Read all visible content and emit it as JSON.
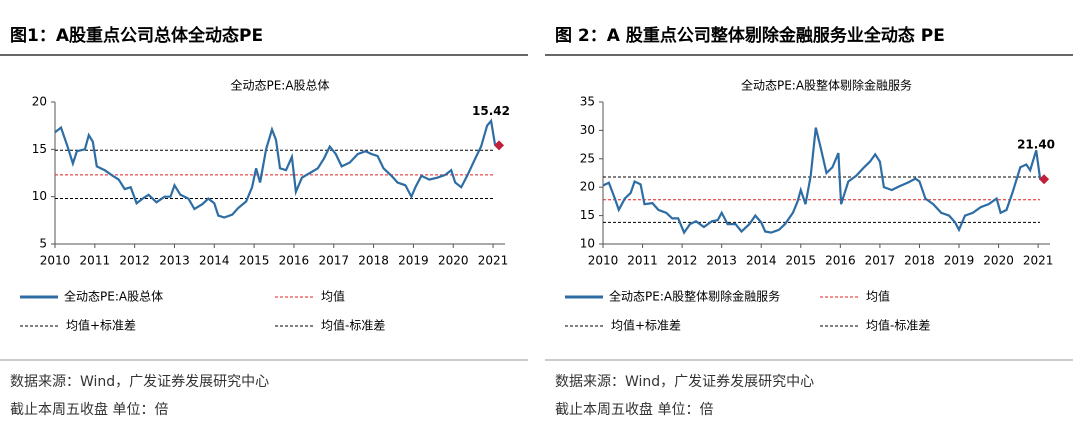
{
  "chart_data": [
    {
      "type": "line",
      "heading": "图1：A股重点公司总体全动态PE",
      "title": "全动态PE:A股总体",
      "source": "数据来源：Wind，广发证券发展研究中心",
      "note": "截止本周五收盘 单位：倍",
      "x": [
        2010.0,
        2010.15,
        2010.3,
        2010.45,
        2010.55,
        2010.75,
        2010.85,
        2010.95,
        2011.05,
        2011.25,
        2011.45,
        2011.6,
        2011.75,
        2011.9,
        2012.05,
        2012.2,
        2012.35,
        2012.55,
        2012.75,
        2012.9,
        2013.0,
        2013.15,
        2013.35,
        2013.5,
        2013.7,
        2013.85,
        2014.0,
        2014.1,
        2014.25,
        2014.45,
        2014.6,
        2014.8,
        2014.95,
        2015.05,
        2015.15,
        2015.3,
        2015.45,
        2015.55,
        2015.65,
        2015.8,
        2015.95,
        2016.05,
        2016.2,
        2016.4,
        2016.6,
        2016.75,
        2016.9,
        2017.05,
        2017.2,
        2017.4,
        2017.6,
        2017.8,
        2017.95,
        2018.1,
        2018.25,
        2018.45,
        2018.6,
        2018.8,
        2018.95,
        2019.05,
        2019.2,
        2019.4,
        2019.6,
        2019.8,
        2019.95,
        2020.05,
        2020.2,
        2020.35,
        2020.55,
        2020.7,
        2020.85,
        2020.95,
        2021.05,
        2021.15
      ],
      "series": [
        {
          "name": "全动态PE:A股总体",
          "color": "#2e6da4",
          "values": [
            16.8,
            17.3,
            15.5,
            13.5,
            14.8,
            15.0,
            16.5,
            15.8,
            13.2,
            12.8,
            12.2,
            11.8,
            10.8,
            11.0,
            9.3,
            9.8,
            10.2,
            9.4,
            10.0,
            10.0,
            11.2,
            10.2,
            9.8,
            8.7,
            9.2,
            9.8,
            9.3,
            8.0,
            7.8,
            8.1,
            8.8,
            9.5,
            11.0,
            13.0,
            11.5,
            15.0,
            17.1,
            16.0,
            13.0,
            12.8,
            14.2,
            10.5,
            12.0,
            12.5,
            13.0,
            14.0,
            15.3,
            14.5,
            13.2,
            13.6,
            14.5,
            14.8,
            14.5,
            14.3,
            13.0,
            12.2,
            11.5,
            11.2,
            10.0,
            11.0,
            12.2,
            11.8,
            12.0,
            12.3,
            12.8,
            11.5,
            11.0,
            12.2,
            14.0,
            15.3,
            17.5,
            18.0,
            15.5,
            15.42
          ]
        }
      ],
      "reference_lines": [
        {
          "name": "均值",
          "value": 12.3,
          "color": "#e02020"
        },
        {
          "name": "均值+标准差",
          "value": 14.9,
          "color": "#000000"
        },
        {
          "name": "均值-标准差",
          "value": 9.8,
          "color": "#000000"
        }
      ],
      "xlim": [
        2010,
        2021.3
      ],
      "xticks": [
        2010,
        2011,
        2012,
        2013,
        2014,
        2015,
        2016,
        2017,
        2018,
        2019,
        2020,
        2021
      ],
      "ylim": [
        5,
        20
      ],
      "yticks": [
        5,
        10,
        15,
        20
      ],
      "marker_color": "#c0203a"
    },
    {
      "type": "line",
      "heading": "图 2：A 股重点公司整体剔除金融服务业全动态 PE",
      "title": "全动态PE:A股整体剔除金融服务",
      "source": "数据来源：Wind，广发证券发展研究中心",
      "note": "截止本周五收盘 单位：倍",
      "x": [
        2010.0,
        2010.15,
        2010.3,
        2010.4,
        2010.55,
        2010.7,
        2010.8,
        2010.95,
        2011.05,
        2011.25,
        2011.4,
        2011.6,
        2011.75,
        2011.9,
        2012.05,
        2012.2,
        2012.35,
        2012.55,
        2012.75,
        2012.9,
        2013.0,
        2013.15,
        2013.35,
        2013.5,
        2013.7,
        2013.85,
        2014.0,
        2014.1,
        2014.25,
        2014.45,
        2014.6,
        2014.8,
        2014.92,
        2015.0,
        2015.12,
        2015.25,
        2015.38,
        2015.5,
        2015.65,
        2015.8,
        2015.95,
        2016.02,
        2016.2,
        2016.4,
        2016.6,
        2016.75,
        2016.88,
        2017.0,
        2017.1,
        2017.3,
        2017.5,
        2017.7,
        2017.9,
        2018.0,
        2018.15,
        2018.35,
        2018.55,
        2018.75,
        2018.9,
        2019.0,
        2019.15,
        2019.35,
        2019.55,
        2019.75,
        2019.95,
        2020.05,
        2020.2,
        2020.35,
        2020.55,
        2020.7,
        2020.8,
        2020.95,
        2021.05,
        2021.15
      ],
      "series": [
        {
          "name": "全动态PE:A股整体剔除金融服务",
          "color": "#2e6da4",
          "values": [
            20.3,
            20.8,
            18.0,
            16.0,
            18.0,
            19.0,
            21.0,
            20.5,
            17.0,
            17.2,
            16.0,
            15.5,
            14.5,
            14.5,
            12.0,
            13.5,
            14.0,
            13.0,
            14.0,
            14.2,
            15.5,
            13.5,
            13.5,
            12.2,
            13.5,
            15.0,
            13.8,
            12.2,
            12.0,
            12.5,
            13.5,
            15.5,
            17.5,
            19.5,
            17.0,
            22.0,
            30.5,
            27.0,
            22.5,
            23.5,
            26.0,
            17.0,
            21.0,
            22.0,
            23.5,
            24.5,
            25.8,
            24.5,
            20.0,
            19.5,
            20.2,
            20.8,
            21.5,
            21.0,
            18.0,
            17.0,
            15.5,
            15.0,
            13.8,
            12.5,
            15.0,
            15.5,
            16.5,
            17.0,
            18.0,
            15.5,
            16.0,
            19.0,
            23.5,
            24.0,
            23.0,
            26.5,
            21.5,
            21.4
          ]
        }
      ],
      "reference_lines": [
        {
          "name": "均值",
          "value": 17.8,
          "color": "#e02020"
        },
        {
          "name": "均值+标准差",
          "value": 21.8,
          "color": "#000000"
        },
        {
          "name": "均值-标准差",
          "value": 13.8,
          "color": "#000000"
        }
      ],
      "xlim": [
        2010,
        2021.3
      ],
      "xticks": [
        2010,
        2011,
        2012,
        2013,
        2014,
        2015,
        2016,
        2017,
        2018,
        2019,
        2020,
        2021
      ],
      "ylim": [
        10,
        35
      ],
      "yticks": [
        10,
        15,
        20,
        25,
        30,
        35
      ],
      "marker_color": "#c0203a"
    }
  ]
}
